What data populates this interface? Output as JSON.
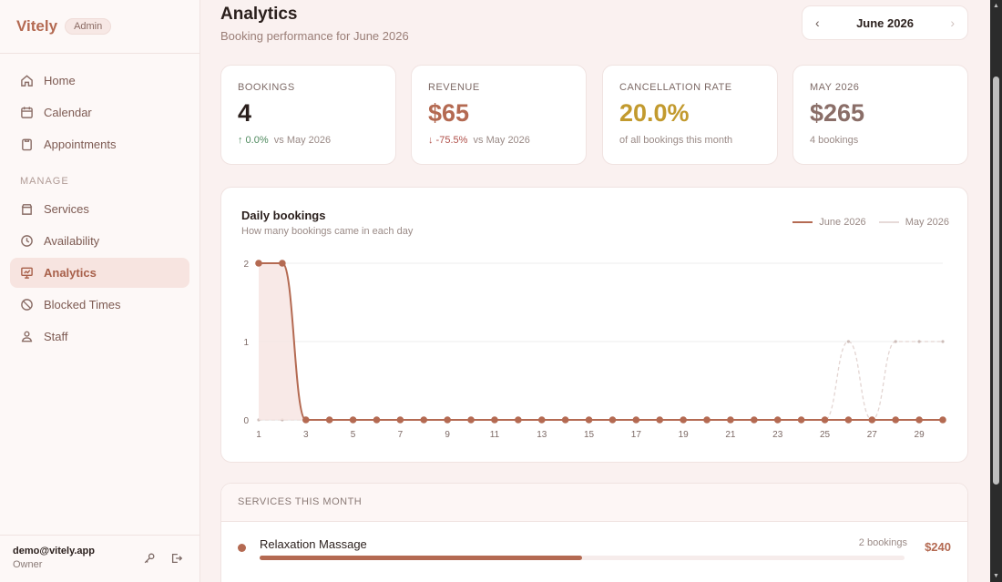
{
  "brand": {
    "name": "Vitely",
    "badge": "Admin"
  },
  "nav": {
    "items": [
      {
        "label": "Home",
        "icon": "home-icon"
      },
      {
        "label": "Calendar",
        "icon": "calendar-icon"
      },
      {
        "label": "Appointments",
        "icon": "clipboard-icon"
      }
    ],
    "section_label": "MANAGE",
    "manage_items": [
      {
        "label": "Services",
        "icon": "box-icon"
      },
      {
        "label": "Availability",
        "icon": "clock-icon"
      },
      {
        "label": "Analytics",
        "icon": "presentation-chart-icon",
        "active": true
      },
      {
        "label": "Blocked Times",
        "icon": "ban-icon"
      },
      {
        "label": "Staff",
        "icon": "staff-icon"
      }
    ]
  },
  "user": {
    "email": "demo@vitely.app",
    "role": "Owner"
  },
  "header": {
    "title": "Analytics",
    "subtitle": "Booking performance for June 2026"
  },
  "month_picker": {
    "label": "June 2026",
    "prev_icon": "chevron-left-icon",
    "next_icon": "chevron-right-icon"
  },
  "stats": [
    {
      "label": "BOOKINGS",
      "value": "4",
      "change": "↑ 0.0%",
      "compare": "vs May 2026",
      "value_color": "#2a1f1c",
      "trend": "up"
    },
    {
      "label": "REVENUE",
      "value": "$65",
      "change": "↓ -75.5%",
      "compare": "vs May 2026",
      "value_color": "#b46a52",
      "trend": "down"
    },
    {
      "label": "CANCELLATION RATE",
      "value": "20.0%",
      "note": "of all bookings this month",
      "value_color": "#c29a2e"
    },
    {
      "label": "MAY 2026",
      "value": "$265",
      "note": "4 bookings",
      "value_color": "#8a6e68"
    }
  ],
  "chart": {
    "title": "Daily bookings",
    "subtitle": "How many bookings came in each day"
  },
  "chart_data": {
    "type": "line",
    "x": [
      1,
      2,
      3,
      4,
      5,
      6,
      7,
      8,
      9,
      10,
      11,
      12,
      13,
      14,
      15,
      16,
      17,
      18,
      19,
      20,
      21,
      22,
      23,
      24,
      25,
      26,
      27,
      28,
      29,
      30
    ],
    "x_ticks": [
      1,
      3,
      5,
      7,
      9,
      11,
      13,
      15,
      17,
      19,
      21,
      23,
      25,
      27,
      29
    ],
    "y_ticks": [
      0,
      1,
      2
    ],
    "ylim": [
      0,
      2
    ],
    "grid": true,
    "legend_position": "top-right",
    "series": [
      {
        "name": "June 2026",
        "color": "#b46a52",
        "values": [
          2,
          2,
          0,
          0,
          0,
          0,
          0,
          0,
          0,
          0,
          0,
          0,
          0,
          0,
          0,
          0,
          0,
          0,
          0,
          0,
          0,
          0,
          0,
          0,
          0,
          0,
          0,
          0,
          0,
          0
        ]
      },
      {
        "name": "May 2026",
        "color": "#d8c8c5",
        "values": [
          0,
          0,
          0,
          0,
          0,
          0,
          0,
          0,
          0,
          0,
          0,
          0,
          0,
          0,
          0,
          0,
          0,
          0,
          0,
          0,
          0,
          0,
          0,
          0,
          0,
          1,
          0,
          1,
          1,
          1
        ]
      }
    ]
  },
  "services": {
    "header": "SERVICES THIS MONTH",
    "rows": [
      {
        "name": "Relaxation Massage",
        "count": "2 bookings",
        "price": "$240",
        "share": 0.5
      }
    ]
  }
}
